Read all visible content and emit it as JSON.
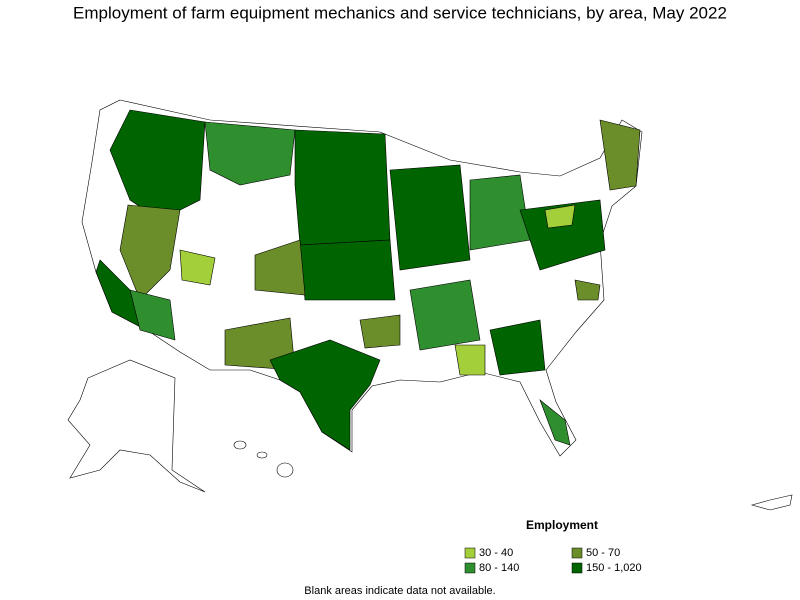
{
  "title": "Employment of farm equipment mechanics and service technicians, by area, May 2022",
  "legend": {
    "title": "Employment",
    "items": [
      {
        "label": "30 - 40",
        "color": "#a3cf3a"
      },
      {
        "label": "50 - 70",
        "color": "#6b8e2a"
      },
      {
        "label": "80 - 140",
        "color": "#2f8f2f"
      },
      {
        "label": "150 - 1,020",
        "color": "#006400"
      }
    ]
  },
  "note": "Blank areas indicate data not available."
}
